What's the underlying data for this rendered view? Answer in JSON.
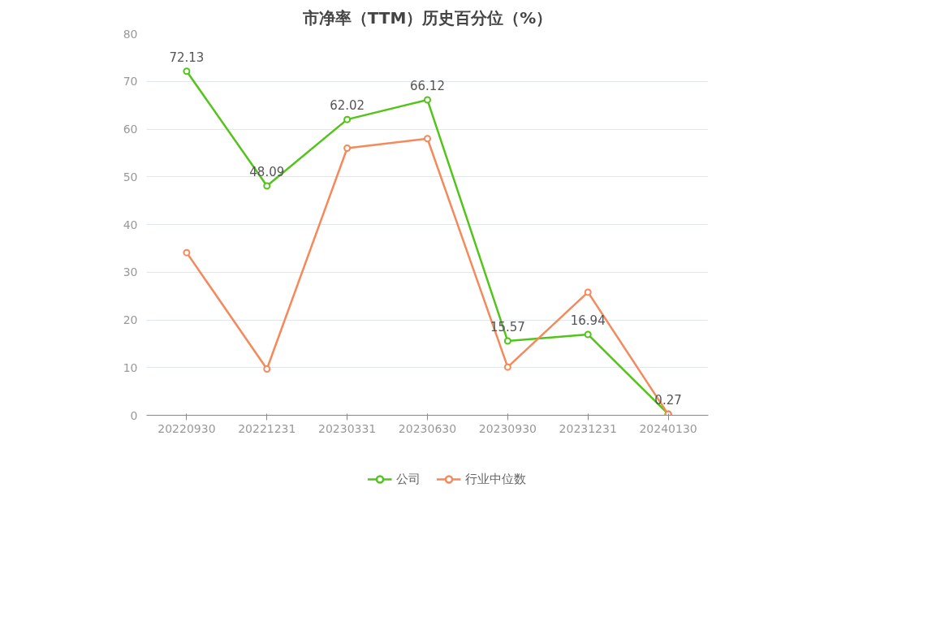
{
  "chart_data": {
    "type": "line",
    "title": "市净率（TTM）历史百分位（%）",
    "categories": [
      "20220930",
      "20221231",
      "20230331",
      "20230630",
      "20230930",
      "20231231",
      "20240130"
    ],
    "series": [
      {
        "name": "公司",
        "color": "#52c41a",
        "values": [
          72.13,
          48.09,
          62.02,
          66.12,
          15.57,
          16.94,
          0.27
        ],
        "value_labels": [
          "72.13",
          "48.09",
          "62.02",
          "66.12",
          "15.57",
          "16.94",
          "0.27"
        ]
      },
      {
        "name": "行业中位数",
        "color": "#f5895b",
        "values": [
          34.1,
          9.7,
          56.0,
          58.0,
          10.1,
          25.8,
          0.2
        ]
      }
    ],
    "ylim": [
      0,
      80
    ],
    "yticks": [
      0,
      10,
      20,
      30,
      40,
      50,
      60,
      70,
      80
    ],
    "grid": "y",
    "legend": "bottom",
    "marker": "circle",
    "line_style": "solid"
  }
}
